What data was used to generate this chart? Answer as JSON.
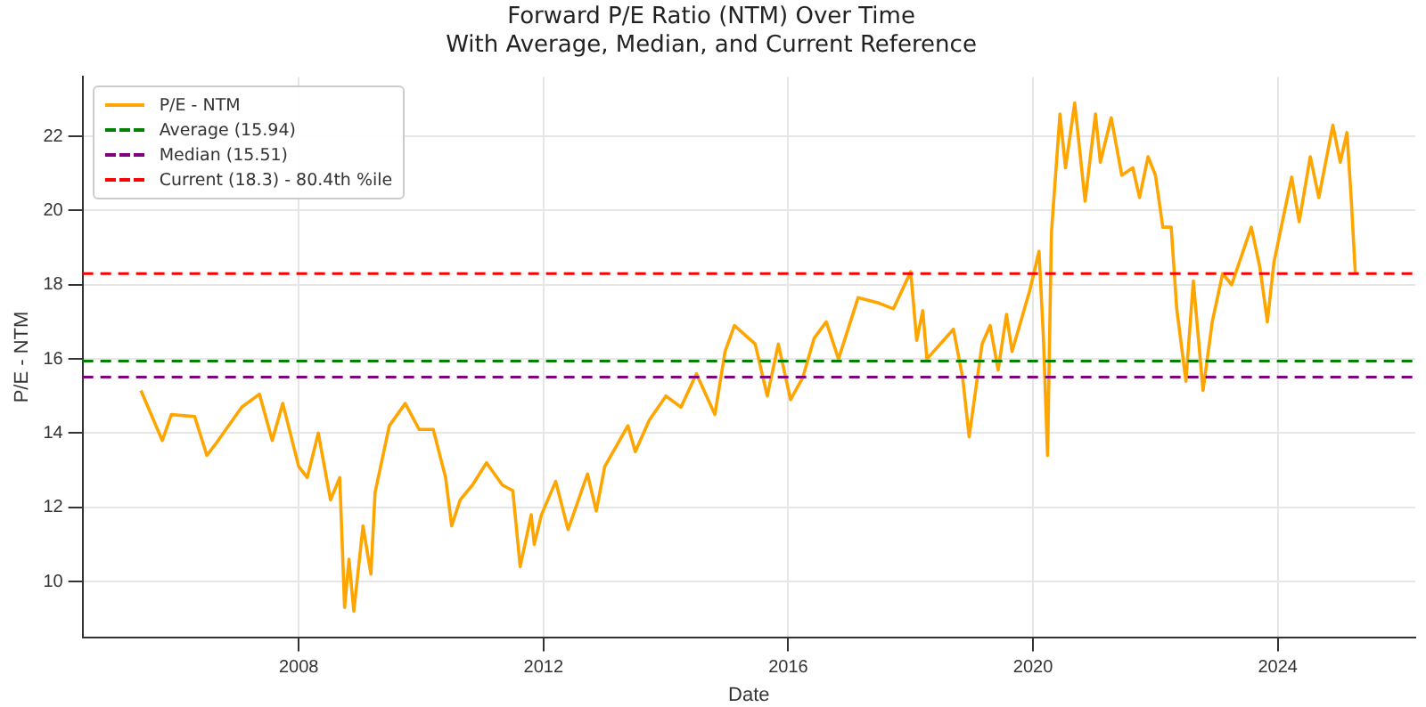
{
  "chart_data": {
    "type": "line",
    "title": "Forward P/E Ratio (NTM) Over Time",
    "subtitle": "With Average, Median, and Current Reference",
    "xlabel": "Date",
    "ylabel": "P/E - NTM",
    "x": [
      "2005-06-03",
      "2005-10-09",
      "2005-12-02",
      "2006-04-20",
      "2006-07-02",
      "2006-08-22",
      "2007-01-26",
      "2007-05-12",
      "2007-07-27",
      "2007-09-28",
      "2008-01-01",
      "2008-02-21",
      "2008-04-27",
      "2008-07-09",
      "2008-09-02",
      "2008-10-01",
      "2008-10-27",
      "2008-11-25",
      "2009-01-19",
      "2009-03-07",
      "2009-04-01",
      "2009-06-25",
      "2009-09-28",
      "2009-12-20",
      "2010-03-14",
      "2010-05-27",
      "2010-07-02",
      "2010-08-22",
      "2010-11-03",
      "2011-01-26",
      "2011-05-01",
      "2011-07-02",
      "2011-08-15",
      "2011-10-20",
      "2011-11-07",
      "2011-12-20",
      "2012-03-14",
      "2012-05-27",
      "2012-09-20",
      "2012-11-11",
      "2013-01-01",
      "2013-05-19",
      "2013-07-02",
      "2013-09-24",
      "2014-01-01",
      "2014-04-01",
      "2014-07-02",
      "2014-10-20",
      "2014-12-20",
      "2015-02-14",
      "2015-06-18",
      "2015-08-29",
      "2015-11-03",
      "2016-01-15",
      "2016-03-28",
      "2016-06-03",
      "2016-08-15",
      "2016-10-27",
      "2017-02-21",
      "2017-06-28",
      "2017-09-20",
      "2018-01-01",
      "2018-02-06",
      "2018-03-14",
      "2018-04-08",
      "2018-09-13",
      "2018-11-07",
      "2018-12-16",
      "2019-03-03",
      "2019-04-20",
      "2019-06-07",
      "2019-07-27",
      "2019-08-29",
      "2019-12-13",
      "2020-02-06",
      "2020-03-03",
      "2020-03-28",
      "2020-04-20",
      "2020-06-10",
      "2020-07-13",
      "2020-09-06",
      "2020-11-07",
      "2021-01-08",
      "2021-02-06",
      "2021-04-12",
      "2021-06-14",
      "2021-08-19",
      "2021-09-28",
      "2021-11-18",
      "2022-01-01",
      "2022-02-14",
      "2022-04-05",
      "2022-05-08",
      "2022-07-02",
      "2022-08-15",
      "2022-10-12",
      "2022-12-06",
      "2023-02-06",
      "2023-04-01",
      "2023-07-27",
      "2023-09-17",
      "2023-10-31",
      "2023-12-09",
      "2024-03-24",
      "2024-05-08",
      "2024-07-13",
      "2024-09-02",
      "2024-11-25",
      "2025-01-08",
      "2025-02-17",
      "2025-03-14",
      "2025-04-08"
    ],
    "series": [
      {
        "name": "P/E - NTM",
        "color": "#ffa500",
        "values": [
          15.15,
          13.8,
          14.5,
          14.45,
          13.4,
          13.7,
          14.7,
          15.05,
          13.8,
          14.8,
          13.1,
          12.8,
          14.0,
          12.2,
          12.8,
          9.3,
          10.6,
          9.2,
          11.5,
          10.2,
          12.4,
          14.2,
          14.8,
          14.1,
          14.1,
          12.8,
          11.5,
          12.2,
          12.6,
          13.2,
          12.6,
          12.45,
          10.4,
          11.8,
          11.0,
          11.8,
          12.7,
          11.4,
          12.9,
          11.9,
          13.1,
          14.2,
          13.5,
          14.35,
          15.0,
          14.7,
          15.6,
          14.5,
          16.2,
          16.9,
          16.4,
          15.0,
          16.4,
          14.9,
          15.5,
          16.55,
          17.0,
          16.0,
          17.65,
          17.5,
          17.35,
          18.35,
          16.5,
          17.3,
          16.0,
          16.8,
          15.5,
          13.9,
          16.4,
          16.9,
          15.7,
          17.2,
          16.2,
          17.85,
          18.9,
          16.6,
          13.4,
          19.4,
          22.6,
          21.15,
          22.9,
          20.25,
          22.6,
          21.3,
          22.5,
          20.95,
          21.15,
          20.35,
          21.45,
          20.95,
          19.55,
          19.55,
          17.35,
          15.4,
          18.1,
          15.15,
          17.0,
          18.3,
          18.0,
          19.55,
          18.45,
          17.0,
          18.6,
          20.9,
          19.7,
          21.45,
          20.35,
          22.3,
          21.3,
          22.1,
          20.35,
          18.3
        ]
      }
    ],
    "ref_lines": [
      {
        "axis": "y",
        "value": 15.94,
        "label": "Average (15.94)",
        "color": "#008000",
        "line_style": "dashed"
      },
      {
        "axis": "y",
        "value": 15.51,
        "label": "Median (15.51)",
        "color": "#800080",
        "line_style": "dashed"
      },
      {
        "axis": "y",
        "value": 18.3,
        "label": "Current (18.3) - 80.4th %ile",
        "color": "#ff0000",
        "line_style": "dashed"
      }
    ],
    "xlim": [
      "2004-06-20",
      "2026-04-01"
    ],
    "xticks": [
      "2008",
      "2012",
      "2016",
      "2020",
      "2024"
    ],
    "ylim": [
      8.5,
      23.6
    ],
    "yticks": [
      10,
      12,
      14,
      16,
      18,
      20,
      22
    ],
    "grid": true,
    "legend": "top left",
    "marker": "none",
    "line_style": "solid"
  }
}
